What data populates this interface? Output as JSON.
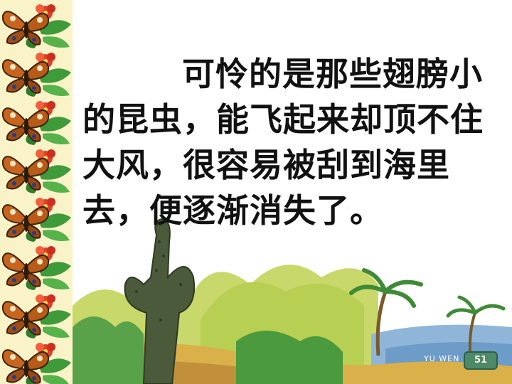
{
  "slide": {
    "passage": {
      "lines": [
        "可怜的是那些翅膀小",
        "的昆虫，能飞起来却顶不住",
        "大风，很容易被刮到海里",
        "去，便逐渐消失了。"
      ]
    },
    "footer": {
      "book_label": "YU WEN",
      "page_number": "51"
    }
  },
  "colors": {
    "text": "#111111",
    "border_background": "#fbf3c8",
    "butterfly_orange": "#c8641e",
    "flower_red": "#e0402a",
    "leaf_green": "#3f9a3a",
    "page_badge": "#4c8a6a"
  },
  "icons": {
    "border": "butterfly-icon",
    "flower": "flower-icon"
  }
}
